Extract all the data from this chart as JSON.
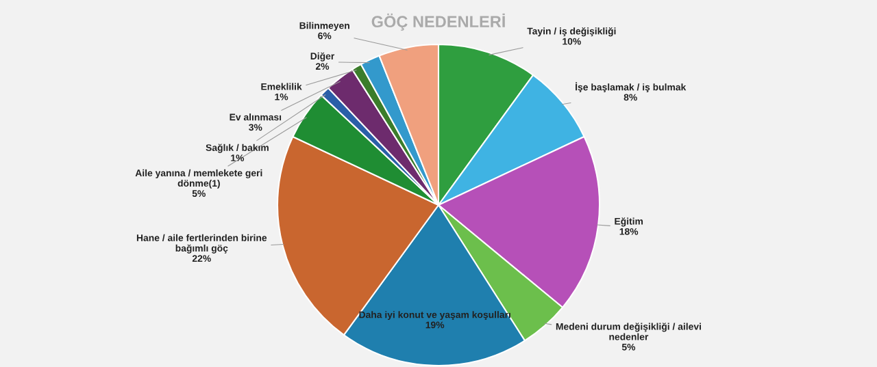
{
  "chart_data": {
    "type": "pie",
    "title": "GÖÇ NEDENLERİ",
    "categories": [
      "Tayin / iş değişikliği",
      "İşe başlamak / iş bulmak",
      "Eğitim",
      "Medeni durum değişikliği / ailevi\nnedenler",
      "Daha iyi konut ve yaşam koşulları",
      "Hane / aile fertlerinden birine\nbağımlı göç",
      "Aile yanına / memlekete geri\ndönme(1)",
      "Sağlık / bakım",
      "Ev alınması",
      "Emeklilik",
      "Diğer",
      "Bilinmeyen"
    ],
    "values": [
      10,
      8,
      18,
      5,
      19,
      22,
      5,
      1,
      3,
      1,
      2,
      6
    ],
    "colors": [
      "#2f9e3f",
      "#3fb3e3",
      "#b650b8",
      "#6cbf4c",
      "#1f7fae",
      "#c9662f",
      "#1f8d33",
      "#2a5fa8",
      "#6d2b6d",
      "#3b7d2b",
      "#3399cc",
      "#f0a07e"
    ],
    "value_labels": [
      "10%",
      "8%",
      "18%",
      "5%",
      "19%",
      "22%",
      "5%",
      "1%",
      "3%",
      "1%",
      "2%",
      "6%"
    ]
  }
}
